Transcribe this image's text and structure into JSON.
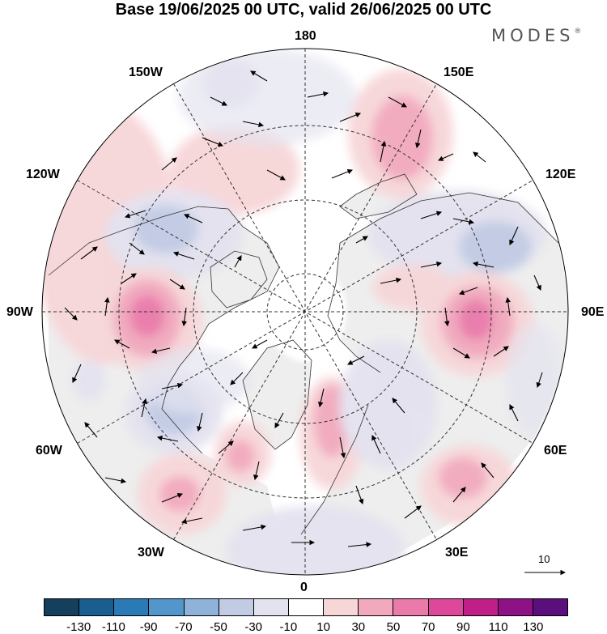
{
  "title": "Base 19/06/2025 00 UTC, valid 26/06/2025 00 UTC",
  "brand": "MODES",
  "brand_mark": "®",
  "map": {
    "projection": "north-polar-stereographic",
    "longitude_labels": {
      "top": "180",
      "bottom": "0",
      "left": "90W",
      "right": "90E",
      "lon_150w": "150W",
      "lon_120w": "120W",
      "lon_60w": "60W",
      "lon_30w": "30W",
      "lon_150e": "150E",
      "lon_120e": "120E",
      "lon_60e": "60E",
      "lon_30e": "30E"
    },
    "vector_scale": {
      "value": "10"
    },
    "colors": {
      "ocean": "#ffffff",
      "land": "#eeeeee",
      "coast": "#333333",
      "grid": "#333333"
    }
  },
  "colorbar": {
    "colors": [
      "#14405e",
      "#1a5d8f",
      "#2a7ab5",
      "#5296cb",
      "#8eb2da",
      "#c1cbe4",
      "#e3e2ef",
      "#ffffff",
      "#f7d6d8",
      "#f2a8bd",
      "#e97aa9",
      "#dd489a",
      "#c01f8a",
      "#8e1285",
      "#5b0f7c"
    ],
    "ticks": [
      "-130",
      "-110",
      "-90",
      "-70",
      "-50",
      "-30",
      "-10",
      "10",
      "30",
      "50",
      "70",
      "90",
      "110",
      "130"
    ]
  }
}
